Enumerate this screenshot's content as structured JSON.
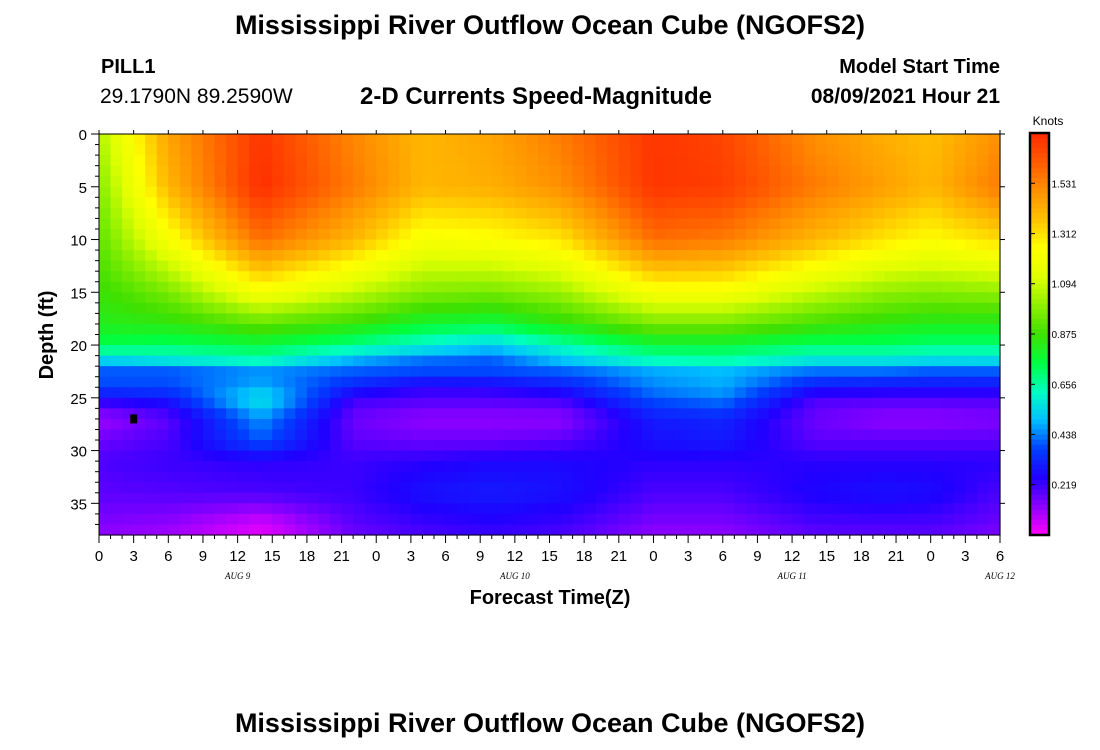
{
  "header": {
    "title": "Mississippi River Outflow Ocean Cube (NGOFS2)",
    "station": "PILL1",
    "coordinates": "29.1790N  89.2590W",
    "subtitle": "2-D Currents Speed-Magnitude",
    "model_start_label": "Model Start Time",
    "model_start_value": "08/09/2021 Hour 21"
  },
  "footer": {
    "title": "Mississippi River Outflow Ocean Cube (NGOFS2)"
  },
  "chart_data": {
    "type": "heatmap",
    "xlabel": "Forecast Time(Z)",
    "ylabel": "Depth (ft)",
    "x_tick_labels": [
      "0",
      "3",
      "6",
      "9",
      "12",
      "15",
      "18",
      "21",
      "0",
      "3",
      "6",
      "9",
      "12",
      "15",
      "18",
      "21",
      "0",
      "3",
      "6",
      "9",
      "12",
      "15",
      "18",
      "21",
      "0",
      "3",
      "6"
    ],
    "day_labels": [
      {
        "label": "AUG 9",
        "hour": 12
      },
      {
        "label": "AUG 10",
        "hour": 36
      },
      {
        "label": "AUG 11",
        "hour": 60
      },
      {
        "label": "AUG 12",
        "hour": 78
      }
    ],
    "xlim_hours": [
      0,
      78
    ],
    "ylim_ft": [
      0,
      38
    ],
    "y_ticks": [
      0,
      5,
      10,
      15,
      20,
      25,
      30,
      35
    ],
    "y_inverted": true,
    "colorbar": {
      "unit": "Knots",
      "range": [
        0,
        1.75
      ],
      "tick_labels": [
        "1.531",
        "1.312",
        "1.094",
        "0.875",
        "0.656",
        "0.438",
        "0.219"
      ],
      "tick_values": [
        1.531,
        1.312,
        1.094,
        0.875,
        0.656,
        0.438,
        0.219
      ],
      "colors": [
        "#ff00ff",
        "#8c00ff",
        "#2000ff",
        "#0040ff",
        "#00c0ff",
        "#00ffc0",
        "#00ff40",
        "#40e000",
        "#90f000",
        "#e0ff00",
        "#ffff00",
        "#ffc000",
        "#ff9000",
        "#ff5a00",
        "#ff2a00"
      ]
    },
    "marker": {
      "hour": 3,
      "depth_ft": 27
    },
    "field": {
      "hours": [
        0,
        6,
        14,
        22,
        28,
        34,
        40,
        48,
        54,
        62,
        68,
        72,
        78
      ],
      "depths_ft": [
        0,
        5,
        10,
        15,
        18,
        20,
        21.5,
        22.5,
        24,
        25,
        27,
        29,
        31,
        34,
        37,
        38
      ],
      "values": [
        [
          1.05,
          1.45,
          1.72,
          1.52,
          1.4,
          1.45,
          1.55,
          1.72,
          1.68,
          1.5,
          1.42,
          1.38,
          1.5
        ],
        [
          0.98,
          1.4,
          1.74,
          1.55,
          1.4,
          1.42,
          1.5,
          1.72,
          1.7,
          1.55,
          1.46,
          1.4,
          1.55
        ],
        [
          0.92,
          1.22,
          1.58,
          1.4,
          1.22,
          1.24,
          1.3,
          1.58,
          1.55,
          1.4,
          1.3,
          1.25,
          1.32
        ],
        [
          0.86,
          0.96,
          1.22,
          1.08,
          0.98,
          0.96,
          1.02,
          1.22,
          1.22,
          1.08,
          1.0,
          0.98,
          1.0
        ],
        [
          0.82,
          0.84,
          0.92,
          0.86,
          0.78,
          0.76,
          0.84,
          0.96,
          0.96,
          0.88,
          0.84,
          0.82,
          0.82
        ],
        [
          0.74,
          0.72,
          0.76,
          0.68,
          0.6,
          0.52,
          0.64,
          0.76,
          0.76,
          0.72,
          0.72,
          0.7,
          0.7
        ],
        [
          0.52,
          0.56,
          0.62,
          0.48,
          0.42,
          0.4,
          0.5,
          0.62,
          0.64,
          0.56,
          0.56,
          0.54,
          0.54
        ],
        [
          0.4,
          0.4,
          0.46,
          0.4,
          0.38,
          0.38,
          0.4,
          0.48,
          0.5,
          0.42,
          0.42,
          0.4,
          0.4
        ],
        [
          0.38,
          0.38,
          0.48,
          0.32,
          0.24,
          0.25,
          0.3,
          0.44,
          0.48,
          0.3,
          0.28,
          0.28,
          0.28
        ],
        [
          0.26,
          0.3,
          0.58,
          0.22,
          0.2,
          0.2,
          0.22,
          0.4,
          0.44,
          0.2,
          0.2,
          0.2,
          0.2
        ],
        [
          0.1,
          0.18,
          0.46,
          0.16,
          0.12,
          0.12,
          0.12,
          0.3,
          0.32,
          0.16,
          0.12,
          0.12,
          0.14
        ],
        [
          0.16,
          0.2,
          0.4,
          0.18,
          0.16,
          0.16,
          0.18,
          0.28,
          0.3,
          0.18,
          0.18,
          0.18,
          0.18
        ],
        [
          0.2,
          0.22,
          0.24,
          0.22,
          0.24,
          0.26,
          0.26,
          0.24,
          0.24,
          0.24,
          0.24,
          0.24,
          0.24
        ],
        [
          0.18,
          0.19,
          0.2,
          0.22,
          0.28,
          0.3,
          0.28,
          0.2,
          0.2,
          0.26,
          0.28,
          0.27,
          0.2
        ],
        [
          0.14,
          0.12,
          0.04,
          0.18,
          0.22,
          0.24,
          0.22,
          0.14,
          0.14,
          0.2,
          0.2,
          0.2,
          0.16
        ],
        [
          0.12,
          0.1,
          0.03,
          0.16,
          0.2,
          0.22,
          0.2,
          0.12,
          0.12,
          0.18,
          0.18,
          0.18,
          0.14
        ]
      ]
    }
  }
}
